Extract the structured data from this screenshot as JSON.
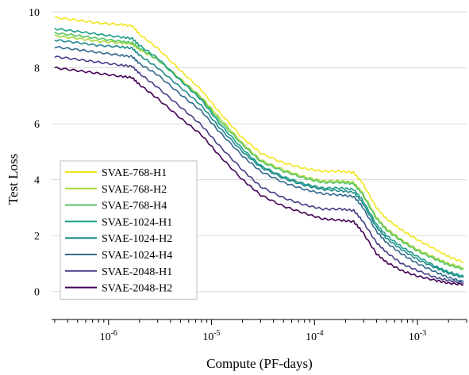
{
  "chart_data": {
    "type": "line",
    "xlabel": "Compute (PF-days)",
    "ylabel": "Test Loss",
    "xscale": "log",
    "xlim": [
      2.8e-07,
      0.003
    ],
    "ylim": [
      -1.0,
      10.0
    ],
    "grid": "horizontal",
    "legend": "lower-left",
    "x_ticks": [
      {
        "value": 1e-06,
        "base": "10",
        "exp": "-6"
      },
      {
        "value": 1e-05,
        "base": "10",
        "exp": "-5"
      },
      {
        "value": 0.0001,
        "base": "10",
        "exp": "-4"
      },
      {
        "value": 0.001,
        "base": "10",
        "exp": "-3"
      }
    ],
    "y_ticks": [
      0,
      2,
      4,
      6,
      8,
      10
    ],
    "x": [
      3e-07,
      5e-07,
      8e-07,
      1.3e-06,
      1.7e-06,
      2e-06,
      3e-06,
      5e-06,
      8e-06,
      1.2e-05,
      2e-05,
      3e-05,
      5e-05,
      8e-05,
      0.00012,
      0.00018,
      0.00024,
      0.00029,
      0.0004,
      0.0005,
      0.0007,
      0.001,
      0.0015,
      0.002,
      0.0028
    ],
    "series": [
      {
        "name": "SVAE-768-H1",
        "color": "#f3e51e",
        "values": [
          9.8,
          9.7,
          9.6,
          9.55,
          9.5,
          9.2,
          8.7,
          7.9,
          7.2,
          6.4,
          5.5,
          4.95,
          4.6,
          4.4,
          4.3,
          4.3,
          4.25,
          3.9,
          3.0,
          2.6,
          2.2,
          1.85,
          1.5,
          1.25,
          1.05
        ]
      },
      {
        "name": "SVAE-768-H2",
        "color": "#a9d83a",
        "values": [
          9.15,
          9.05,
          8.95,
          8.9,
          8.85,
          8.65,
          8.3,
          7.6,
          6.95,
          6.2,
          5.3,
          4.7,
          4.35,
          4.1,
          3.95,
          3.95,
          3.9,
          3.55,
          2.65,
          2.25,
          1.85,
          1.5,
          1.2,
          1.0,
          0.85
        ]
      },
      {
        "name": "SVAE-768-H4",
        "color": "#56c567",
        "values": [
          9.25,
          9.15,
          9.05,
          8.95,
          8.9,
          8.7,
          8.3,
          7.55,
          6.9,
          6.1,
          5.25,
          4.65,
          4.3,
          4.05,
          3.9,
          3.9,
          3.85,
          3.5,
          2.6,
          2.2,
          1.8,
          1.45,
          1.15,
          0.95,
          0.8
        ]
      },
      {
        "name": "SVAE-1024-H1",
        "color": "#1e9e89",
        "values": [
          9.4,
          9.3,
          9.2,
          9.1,
          9.05,
          8.8,
          8.35,
          7.55,
          6.85,
          6.0,
          5.1,
          4.5,
          4.1,
          3.85,
          3.7,
          3.7,
          3.65,
          3.3,
          2.4,
          2.0,
          1.6,
          1.25,
          0.9,
          0.7,
          0.55
        ]
      },
      {
        "name": "SVAE-1024-H2",
        "color": "#1f8a8c",
        "values": [
          9.0,
          8.9,
          8.8,
          8.75,
          8.7,
          8.45,
          8.0,
          7.3,
          6.65,
          5.85,
          5.0,
          4.45,
          4.05,
          3.8,
          3.65,
          3.6,
          3.55,
          3.2,
          2.3,
          1.9,
          1.5,
          1.15,
          0.85,
          0.65,
          0.5
        ]
      },
      {
        "name": "SVAE-1024-H4",
        "color": "#31688e",
        "values": [
          8.75,
          8.65,
          8.55,
          8.45,
          8.4,
          8.15,
          7.75,
          7.05,
          6.45,
          5.7,
          4.85,
          4.3,
          3.9,
          3.65,
          3.5,
          3.45,
          3.4,
          3.05,
          2.15,
          1.75,
          1.35,
          1.0,
          0.7,
          0.5,
          0.35
        ]
      },
      {
        "name": "SVAE-2048-H1",
        "color": "#433e85",
        "values": [
          8.4,
          8.3,
          8.2,
          8.1,
          8.05,
          7.8,
          7.3,
          6.6,
          5.95,
          5.2,
          4.35,
          3.75,
          3.35,
          3.1,
          2.95,
          2.95,
          2.9,
          2.55,
          1.75,
          1.4,
          1.0,
          0.75,
          0.5,
          0.4,
          0.3
        ]
      },
      {
        "name": "SVAE-2048-H2",
        "color": "#440154",
        "values": [
          8.0,
          7.9,
          7.8,
          7.7,
          7.65,
          7.4,
          6.9,
          6.2,
          5.6,
          4.85,
          4.0,
          3.45,
          3.05,
          2.8,
          2.6,
          2.55,
          2.5,
          2.15,
          1.35,
          1.05,
          0.75,
          0.55,
          0.4,
          0.3,
          0.25
        ]
      }
    ]
  }
}
